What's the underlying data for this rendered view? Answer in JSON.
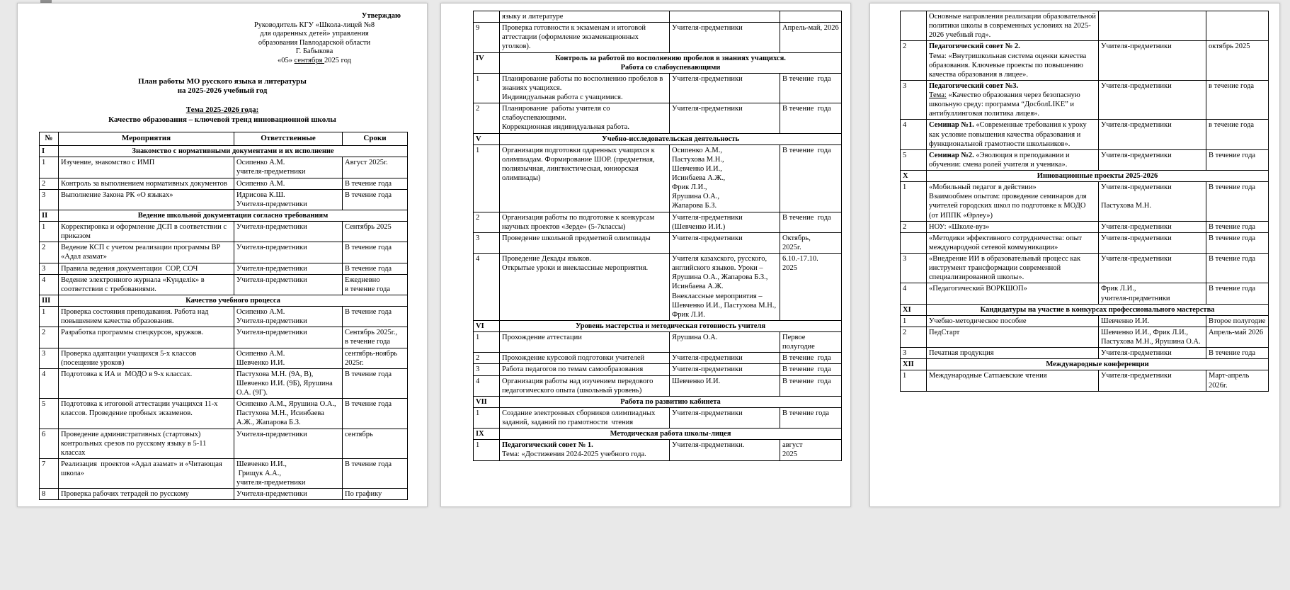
{
  "colors": {
    "background": "#e9e9e9",
    "page": "#ffffff",
    "text": "#000000",
    "table_border": "#000000"
  },
  "page1": {
    "approval": {
      "line1": "Утверждаю",
      "line2": "Руководитель КГУ «Школа-лицей №8",
      "line3": "для одаренных детей» управления",
      "line4": "образования Павлодарской области",
      "line5": "Г. Бабыкова",
      "date_pre": "«05» ",
      "date_u": "сентября ",
      "date_post": "2025 год"
    },
    "title_line1": "План работы МО русского языка и литературы",
    "title_line2": "на 2025-2026 учебный год",
    "theme_label": "Тема 2025-2026 года:",
    "theme_text": "Качество образования – ключевой тренд инновационной школы",
    "table": {
      "headers": [
        "№",
        "Мероприятия",
        "Ответственные",
        "Сроки"
      ],
      "rows": [
        {
          "sec": "I",
          "title": "Знакомство с нормативными документами и их исполнение"
        },
        {
          "n": "1",
          "a": "Изучение, знакомство с ИМП",
          "r": "Осипенко А.М.\nучителя-предметники",
          "s": "Август 2025г."
        },
        {
          "n": "2",
          "a": "Контроль за выполнением нормативных документов",
          "r": "Осипенко А.М.",
          "s": "В течение года"
        },
        {
          "n": "3",
          "a": "Выполнение Закона РК «О языках»",
          "r": "Идрисова К.Ш.\nУчителя-предметники",
          "s": "В течение года"
        },
        {
          "sec": "II",
          "title": "Ведение школьной документации согласно требованиям"
        },
        {
          "n": "1",
          "a": "Корректировка и оформление ДСП в соответствии с приказом",
          "r": "Учителя-предметники",
          "s": "Сентябрь 2025"
        },
        {
          "n": "2",
          "a": "Ведение КСП с учетом реализации программы ВР «Адал азамат»",
          "r": "Учителя-предметники",
          "s": "В течение года"
        },
        {
          "n": "3",
          "a": "Правила ведения документации  СОР, СОЧ",
          "r": "Учителя-предметники",
          "s": "В течение года"
        },
        {
          "n": "4",
          "a": "Ведение электронного журнала «Күнделік» в соответствии с требованиями.",
          "r": "Учителя-предметники",
          "s": "Ежедневно\nв течение года"
        },
        {
          "sec": "III",
          "title": "Качество учебного процесса"
        },
        {
          "n": "1",
          "a": "Проверка состояния преподавания. Работа над повышением качества образования.",
          "r": "Осипенко А.М.\nУчителя-предметники",
          "s": "В течение года"
        },
        {
          "n": "2",
          "a": "Разработка программы спецкурсов, кружков.",
          "r": "Учителя-предметники",
          "s": "Сентябрь 2025г.,\nв течение года"
        },
        {
          "n": "3",
          "a": "Проверка адаптации учащихся 5-х классов (посещение уроков)",
          "r": "Осипенко А.М.\nШевченко И.И.",
          "s": "сентябрь-ноябрь 2025г."
        },
        {
          "n": "4",
          "a": "Подготовка к ИА и  МОДО в 9-х классах.",
          "r": "Пастухова М.Н. (9А, В), Шевченко И.И. (9Б), Ярушина О.А. (9Г).",
          "s": "В течение года"
        },
        {
          "n": "5",
          "a": "Подготовка к итоговой аттестации учащихся 11-х классов. Проведение пробных экзаменов.",
          "r": "Осипенко А.М., Ярушина О.А., Пастухова М.Н., Исинбаева А.Ж., Жапарова Б.З.",
          "s": "В течение года"
        },
        {
          "n": "6",
          "a": "Проведение административных (стартовых) контрольных срезов по русскому языку в 5-11 классах",
          "r": "Учителя-предметники",
          "s": "сентябрь"
        },
        {
          "n": "7",
          "a": "Реализация  проектов «Адал азамат» и «Читающая школа»",
          "r": "Шевченко И.И.,\n Грищук А.А.,\nучителя-предметники",
          "s": "В течение года"
        },
        {
          "n": "8",
          "a": "Проверка рабочих тетрадей по русскому",
          "r": "Учителя-предметники",
          "s": "По графику"
        }
      ]
    }
  },
  "page2": {
    "table": {
      "rows": [
        {
          "n": "",
          "a": "языку и литературе",
          "r": "",
          "s": ""
        },
        {
          "n": "9",
          "a": "Проверка готовности к экзаменам и итоговой аттестации (оформление экзаменационных уголков).\n",
          "r": "Учителя-предметники",
          "s": "Апрель-май, 2026"
        },
        {
          "sec": "IV",
          "title": "Контроль за работой по восполнению пробелов в знаниях учащихся.\nРабота со слабоуспевающими"
        },
        {
          "n": "1",
          "a": "Планирование работы по восполнению пробелов в знаниях учащихся.\nИндивидуальная работа с учащимися.\n",
          "r": "Учителя-предметники",
          "s": "В течение  года"
        },
        {
          "n": "2",
          "a": "Планирование  работы учителя со слабоуспевающими.\nКоррекционная индивидуальная работа.\n",
          "r": "Учителя-предметники",
          "s": "В течение  года"
        },
        {
          "sec": "V",
          "title": "Учебно-исследовательская деятельность"
        },
        {
          "n": "1",
          "a": "Организация подготовки одаренных учащихся к олимпиадам. Формирование ШОР. (предметная, полиязычная, лингвистическая, юниорская  олимпиады)",
          "r": "Осипенко А.М.,\nПастухова М.Н.,\nШевченко И.И.,\nИсинбаева А.Ж.,\nФрик Л.И.,\nЯрушина О.А.,\nЖапарова Б.З.",
          "s": "В течение  года"
        },
        {
          "n": "2",
          "a": "Организация работы по подготовке к конкурсам научных проектов «Зерде» (5-7классы)",
          "r": "Учителя-предметники (Шевченко И.И.)",
          "s": "В течение  года"
        },
        {
          "n": "3",
          "a": "Проведение школьной предметной олимпиады",
          "r": "Учителя-предметники",
          "s": "Октябрь,\n2025г."
        },
        {
          "n": "4",
          "a": "Проведение Декады языков.\nОткрытые уроки и внеклассные мероприятия.",
          "r": "Учителя казахского, русского, английского языков. Уроки – Ярушина О.А., Жапарова Б.З., Исинбаева А.Ж.\nВнеклассные мероприятия – Шевченко И.И., Пастухова М.Н., Фрик Л.И.",
          "s": "6.10.-17.10.\n2025"
        },
        {
          "sec": "VI",
          "title": "Уровень мастерства и методическая готовность учителя\n"
        },
        {
          "n": "1",
          "a": "Прохождение аттестации\n",
          "r": "Ярушина О.А.",
          "s": "Первое полугодие"
        },
        {
          "n": "2",
          "a": "Прохождение курсовой подготовки учителей",
          "r": "Учителя-предметники",
          "s": "В течение  года"
        },
        {
          "n": "3",
          "a": "Работа педагогов по темам самообразования",
          "r": "Учителя-предметники",
          "s": "В течение  года"
        },
        {
          "n": "4",
          "a": "Организация работы над изучением передового педагогического опыта (школьный уровень)",
          "r": "Шевченко И.И.",
          "s": "В течение  года"
        },
        {
          "sec": "VII",
          "title": "Работа по развитию кабинета"
        },
        {
          "n": "1",
          "a": "Создание электронных сборников олимпиадных заданий, заданий по грамотности  чтения",
          "r": "Учителя-предметники",
          "s": "В течение года"
        },
        {
          "sec": "IX",
          "title": "Методическая работа школы-лицея"
        },
        {
          "n": "1",
          "a": [
            [
              "b",
              "Педагогический совет № 1.\n"
            ],
            [
              "",
              "Тема: «Достижения 2024-2025 учебного года. "
            ]
          ],
          "r": "Учителя-предметники.",
          "s": "август\n2025"
        }
      ]
    }
  },
  "page3": {
    "table": {
      "rows": [
        {
          "n": "",
          "a": "Основные направления реализации образовательной политики школы в современных условиях на 2025-2026 учебный год».",
          "r": "",
          "s": ""
        },
        {
          "n": "2",
          "a": [
            [
              "b",
              "Педагогический совет № 2.\n"
            ],
            [
              "",
              "Тема: «Внутришкольная система оценки качества образования. Ключевые проекты по повышению качества образования в лицее»."
            ]
          ],
          "r": "Учителя-предметники",
          "s": "октябрь 2025"
        },
        {
          "n": "3",
          "a": [
            [
              "b",
              "Педагогический совет №3.\n"
            ],
            [
              "u",
              "Тема:"
            ],
            [
              "",
              " «Качество образования через безопасную школьную среду: программа “ДосболLIKE” и антибуллинговая политика лицея»."
            ]
          ],
          "r": "Учителя-предметники",
          "s": "в течение года"
        },
        {
          "n": "4",
          "a": [
            [
              "b",
              "Семинар №1."
            ],
            [
              "",
              " «Современные требования к уроку как условие повышения качества образования и функциональной грамотности школьников»."
            ]
          ],
          "r": "Учителя-предметники",
          "s": "в течение года"
        },
        {
          "n": "5",
          "a": [
            [
              "b",
              "Семинар №2."
            ],
            [
              "",
              " «Эволюция в преподавании и обучении: смена ролей учителя и ученика»."
            ]
          ],
          "r": "Учителя-предметники",
          "s": "В течение года"
        },
        {
          "sec": "X",
          "title": "Инновационные проекты 2025-2026\n"
        },
        {
          "n": "1",
          "a": "«Мобильный педагог в действии»\nВзаимообмен опытом: проведение семинаров для учителей городских школ по подготовке к МОДО (от ИППК «Өрлеу»)",
          "r": "Учителя-предметники\n\nПастухова М.Н.",
          "s": "В течение года"
        },
        {
          "n": "2",
          "a": "НОУ: «Школе-вуз»",
          "r": "Учителя-предметники",
          "s": "В течение года"
        },
        {
          "n": "",
          "a": "«Методики эффективного сотрудничества: опыт международной сетевой коммуникации»",
          "r": "Учителя-предметники",
          "s": "В течение года"
        },
        {
          "n": "3",
          "a": "«Внедрение ИИ в образовательный процесс как инструмент трансформации современной специализированной школы».",
          "r": "Учителя-предметники",
          "s": "В течение года"
        },
        {
          "n": "4",
          "a": "«Педагогический ВОРКШОП»",
          "r": "Фрик Л.И.,\nучителя-предметники",
          "s": "В течение года"
        },
        {
          "sec": "XI",
          "title": "Кандидатуры на участие в конкурсах профессионального мастерства\n"
        },
        {
          "n": "1",
          "a": "Учебно-методическое пособие\n",
          "r": "Шевченко И.И.",
          "s": "Второе полугодие"
        },
        {
          "n": "2",
          "a": "ПедСтарт",
          "r": "Шевченко И.И., Фрик Л.И., Пастухова М.Н., Ярушина О.А.",
          "s": "Апрель-май 2026"
        },
        {
          "n": "3",
          "a": "Печатная продукция",
          "r": "Учителя-предметники",
          "s": "В течение года"
        },
        {
          "sec": "XII",
          "title": "Международные конференции"
        },
        {
          "n": "1",
          "a": "Международные Сатпаевские чтения",
          "r": "Учителя-предметники",
          "s": "Март-апрель 2026г."
        }
      ]
    }
  }
}
